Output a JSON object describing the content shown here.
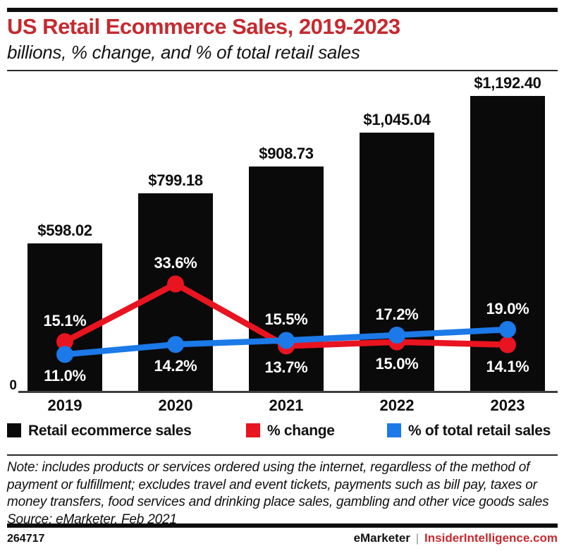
{
  "header": {
    "title": "US Retail Ecommerce Sales, 2019-2023",
    "subtitle": "billions, % change, and % of total retail sales",
    "title_color": "#c62a2f"
  },
  "chart_data": {
    "type": "bar",
    "subtype": "bar + line combo",
    "categories": [
      "2019",
      "2020",
      "2021",
      "2022",
      "2023"
    ],
    "bar_series": {
      "name": "Retail ecommerce sales",
      "unit": "billions of US dollars",
      "values": [
        598.02,
        799.18,
        908.73,
        1045.04,
        1192.4
      ],
      "labels": [
        "$598.02",
        "$799.18",
        "$908.73",
        "$1,045.04",
        "$1,192.40"
      ],
      "color": "#0a0a0a"
    },
    "line_series": [
      {
        "name": "% change",
        "color": "#e8141f",
        "values": [
          15.1,
          33.6,
          13.7,
          15.0,
          14.1
        ],
        "labels": [
          "15.1%",
          "33.6%",
          "13.7%",
          "15.0%",
          "14.1%"
        ]
      },
      {
        "name": "% of total retail sales",
        "color": "#1b79e8",
        "values": [
          11.0,
          14.2,
          15.5,
          17.2,
          19.0
        ],
        "labels": [
          "11.0%",
          "14.2%",
          "15.5%",
          "17.2%",
          "19.0%"
        ]
      }
    ],
    "y_axis": {
      "baseline_label": "0",
      "bars_range": [
        0,
        1250
      ],
      "lines_range": [
        0,
        40
      ]
    },
    "grid": false,
    "legend_position": "bottom"
  },
  "legend": {
    "items": [
      {
        "label": "Retail ecommerce sales",
        "color": "#0a0a0a"
      },
      {
        "label": "% change",
        "color": "#e8141f"
      },
      {
        "label": "% of total retail sales",
        "color": "#1b79e8"
      }
    ]
  },
  "note": {
    "lines": [
      "Note: includes products or services ordered using the internet, regardless of the method of",
      "payment or fulfillment; excludes travel and event tickets, payments such as bill pay, taxes or",
      "money transfers, food services and drinking place sales, gambling and other vice goods sales"
    ],
    "source": "Source: eMarketer, Feb 2021"
  },
  "footer": {
    "chart_id": "264717",
    "brand": "eMarketer",
    "separator": "|",
    "site": "InsiderIntelligence.com",
    "site_color": "#c62a2f"
  }
}
